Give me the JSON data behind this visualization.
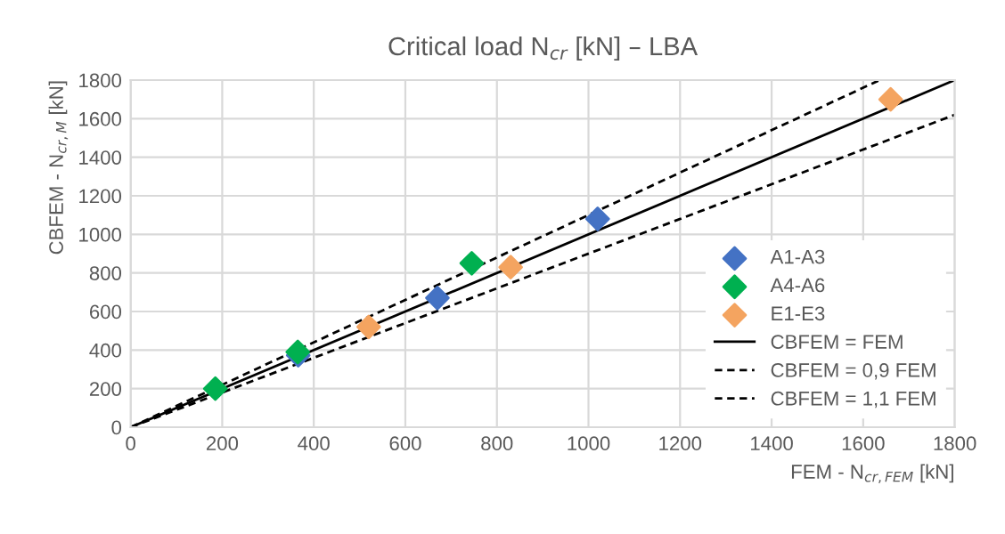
{
  "chart_data": {
    "type": "scatter",
    "title": "Critical load N$_{cr}$ [kN] – LBA",
    "xlabel": "FEM - N$_{cr,FEM}$ [kN]",
    "ylabel": "CBFEM - N$_{cr,M}$ [kN]",
    "xlim": [
      0,
      1800
    ],
    "ylim": [
      0,
      1800
    ],
    "xticks": [
      0,
      200,
      400,
      600,
      800,
      1000,
      1200,
      1400,
      1600,
      1800
    ],
    "yticks": [
      0,
      200,
      400,
      600,
      800,
      1000,
      1200,
      1400,
      1600,
      1800
    ],
    "grid": true,
    "legend": "bottom right",
    "marker": "diamond",
    "series": [
      {
        "name": "A1-A3",
        "color": "#4472c4",
        "x": [
          366,
          670,
          1020
        ],
        "values": [
          373,
          670,
          1080
        ]
      },
      {
        "name": "A4-A6",
        "color": "#00b050",
        "x": [
          185,
          365,
          745
        ],
        "values": [
          200,
          390,
          850
        ]
      },
      {
        "name": "E1-E3",
        "color": "#f4a460",
        "x": [
          520,
          830,
          1660
        ],
        "values": [
          520,
          830,
          1700
        ]
      },
      {
        "name": "CBFEM = FEM",
        "type": "line",
        "color": "#000000",
        "marker": "none",
        "line_style": "solid",
        "x": [
          0,
          1800
        ],
        "values": [
          0,
          1800
        ]
      },
      {
        "name": "CBFEM = 0,9 FEM",
        "type": "line",
        "color": "#000000",
        "marker": "none",
        "line_style": "dashed",
        "x": [
          0,
          1800
        ],
        "values": [
          0,
          1620
        ]
      },
      {
        "name": "CBFEM = 1,1 FEM",
        "type": "line",
        "color": "#000000",
        "marker": "none",
        "line_style": "dashed",
        "x": [
          0,
          1636
        ],
        "values": [
          0,
          1800
        ]
      }
    ]
  }
}
